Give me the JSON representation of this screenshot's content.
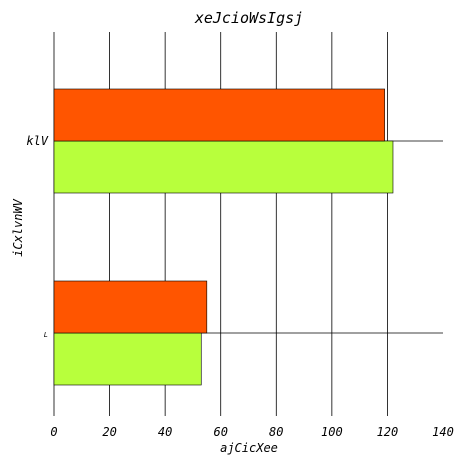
{
  "chart_data": {
    "type": "bar",
    "orientation": "horizontal",
    "title": "xeJcioWsIgsj",
    "xlabel": "ajCicXee",
    "ylabel": "iCxlvnWV",
    "categories": [
      "L",
      "klV"
    ],
    "xlim": [
      0,
      140
    ],
    "x_ticks": [
      "0",
      "20",
      "40",
      "60",
      "80",
      "100",
      "120",
      "140"
    ],
    "series": [
      {
        "color": "#b8ff3c",
        "values": [
          53,
          122
        ]
      },
      {
        "color": "#ff5500",
        "values": [
          55,
          119
        ]
      }
    ],
    "grid": true,
    "legend": "none"
  }
}
